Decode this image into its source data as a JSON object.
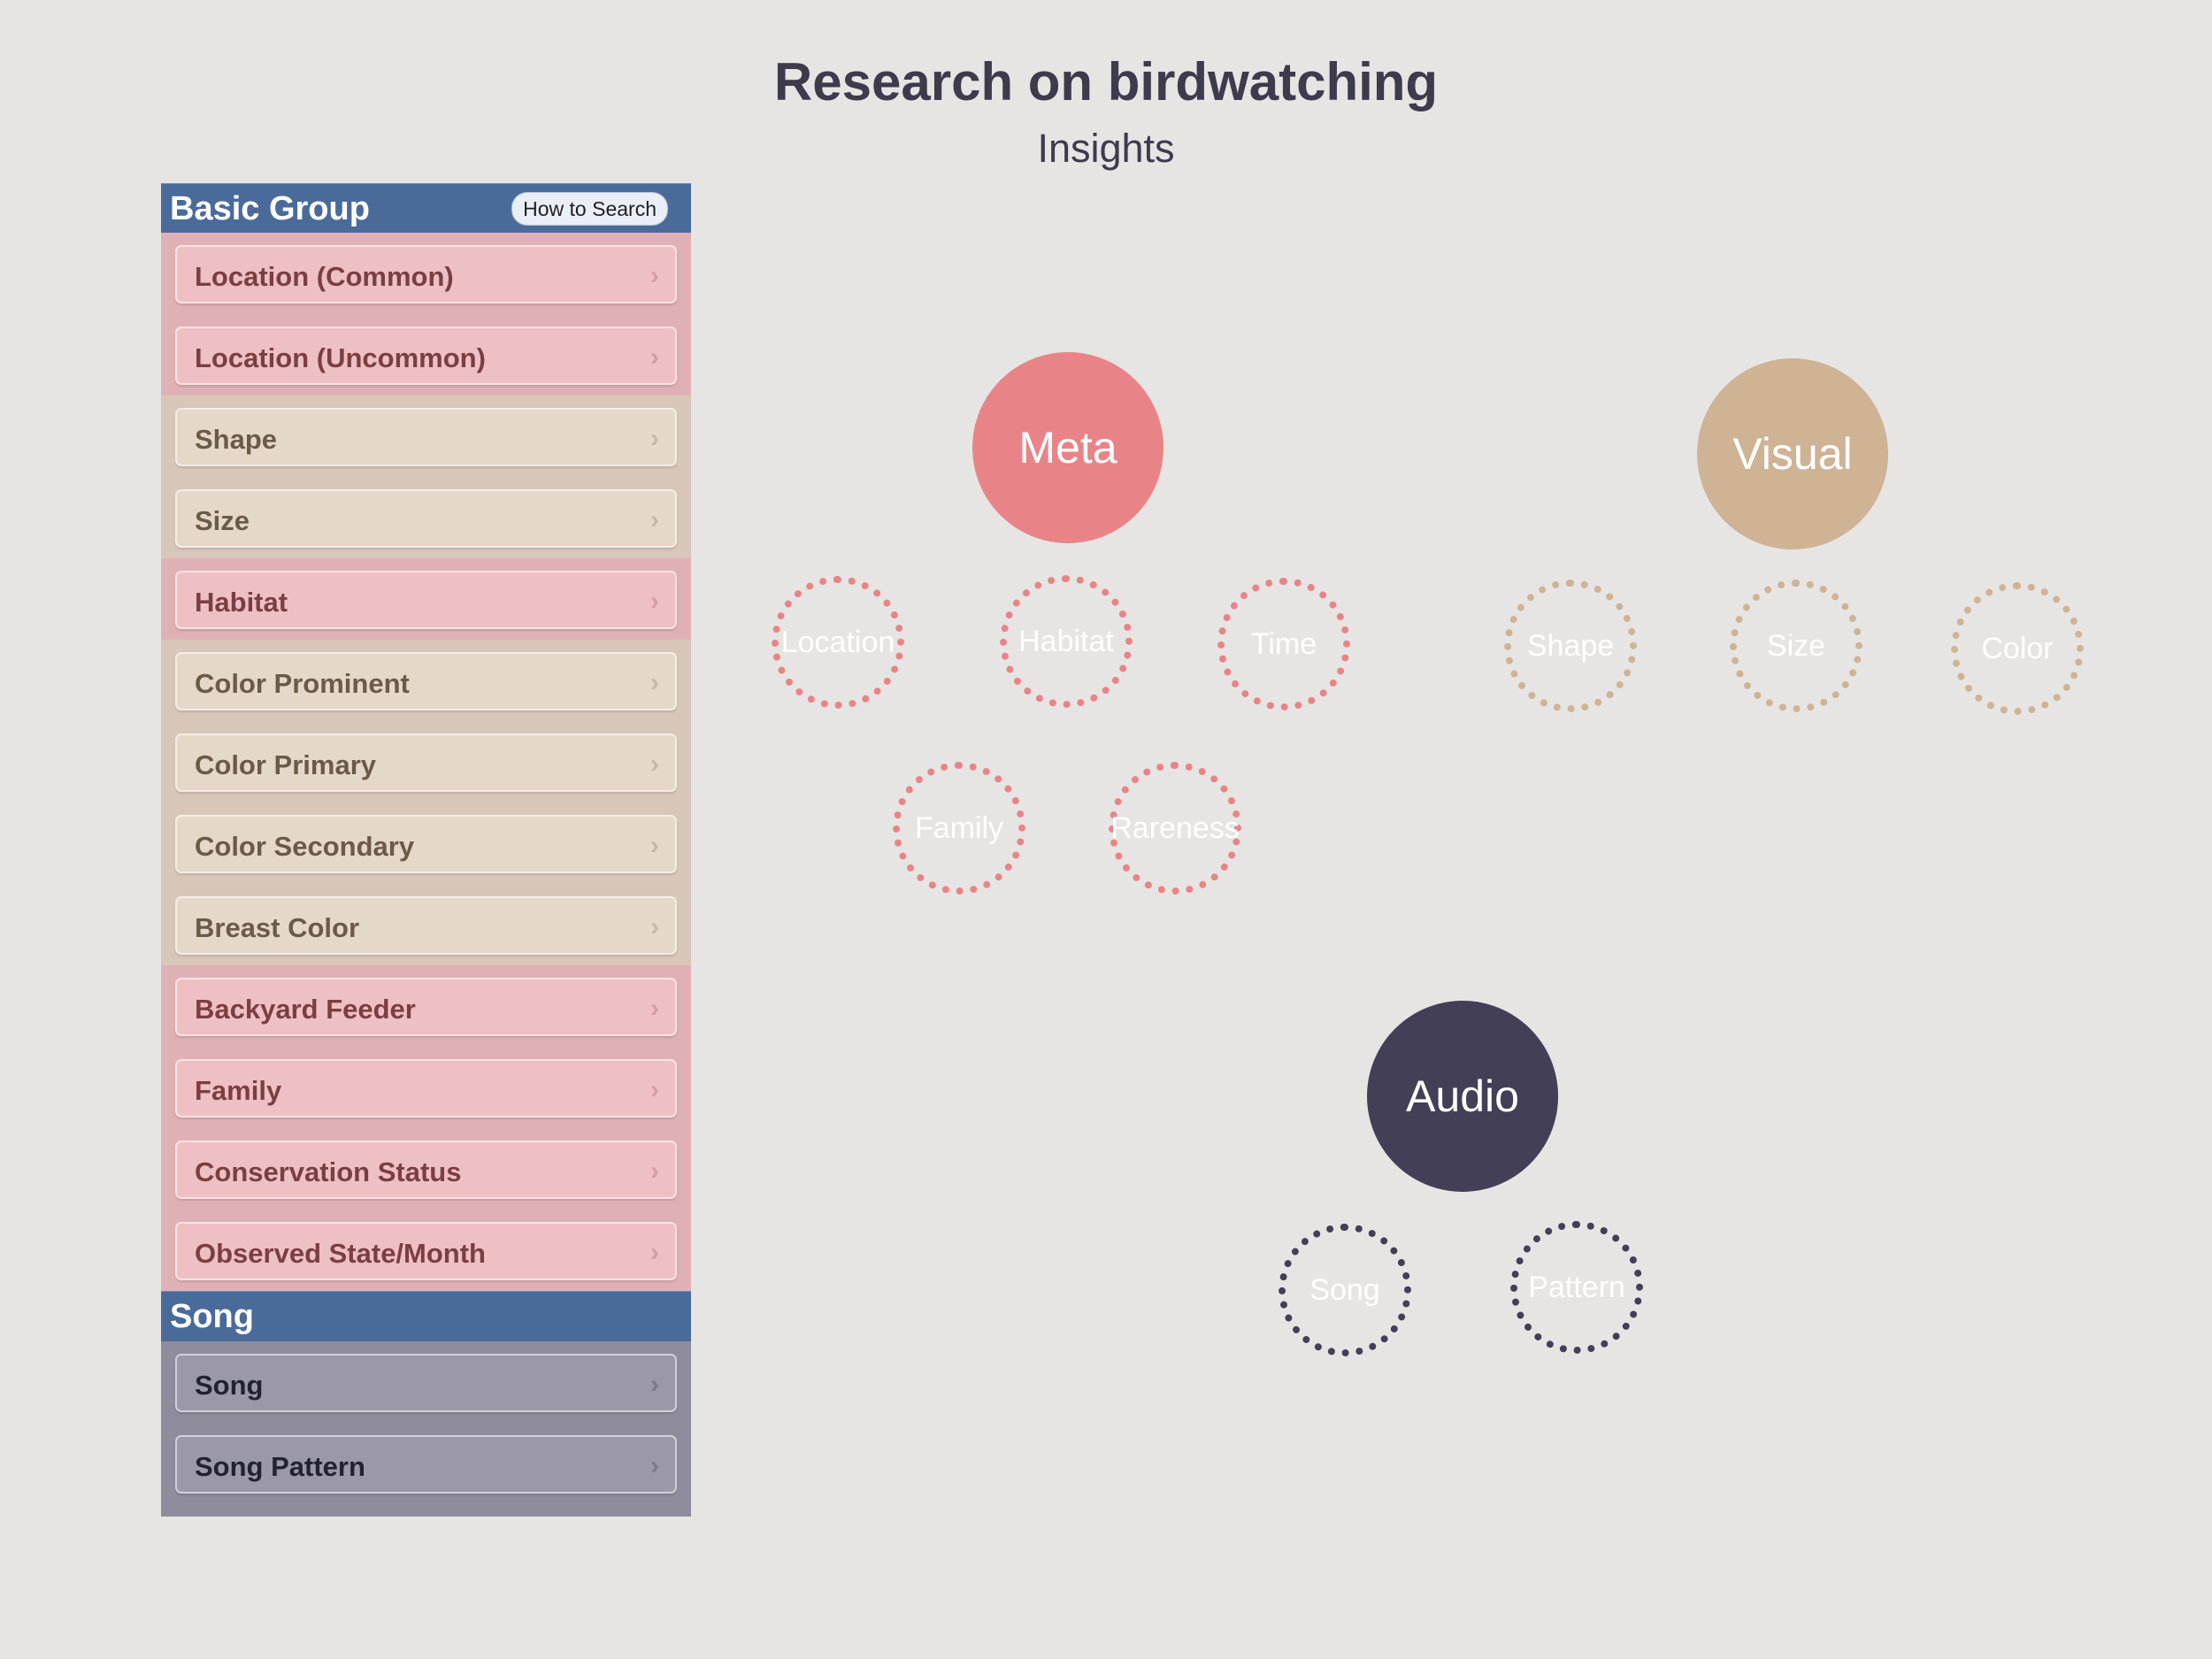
{
  "title": "Research on birdwatching",
  "subtitle": "Insights",
  "colors": {
    "meta": "#e88488",
    "visual": "#cfb395",
    "audio": "#433f56",
    "header": "#4a6b9a"
  },
  "sidebar": {
    "basic_group_label": "Basic Group",
    "how_to_search_label": "How to Search",
    "items": [
      {
        "label": "Location (Common)"
      },
      {
        "label": "Location (Uncommon)"
      },
      {
        "label": "Shape"
      },
      {
        "label": "Size"
      },
      {
        "label": "Habitat"
      },
      {
        "label": "Color Prominent"
      },
      {
        "label": "Color Primary"
      },
      {
        "label": "Color Secondary"
      },
      {
        "label": "Breast Color"
      },
      {
        "label": "Backyard Feeder"
      },
      {
        "label": "Family"
      },
      {
        "label": "Conservation Status"
      },
      {
        "label": "Observed State/Month"
      }
    ],
    "song_group_label": "Song",
    "song_items": [
      {
        "label": "Song"
      },
      {
        "label": "Song Pattern"
      }
    ],
    "chevron": "›"
  },
  "diagram": {
    "meta": {
      "label": "Meta",
      "children": [
        "Location",
        "Habitat",
        "Time",
        "Family",
        "Rareness"
      ]
    },
    "visual": {
      "label": "Visual",
      "children": [
        "Shape",
        "Size",
        "Color"
      ]
    },
    "audio": {
      "label": "Audio",
      "children": [
        "Song",
        "Pattern"
      ]
    }
  }
}
